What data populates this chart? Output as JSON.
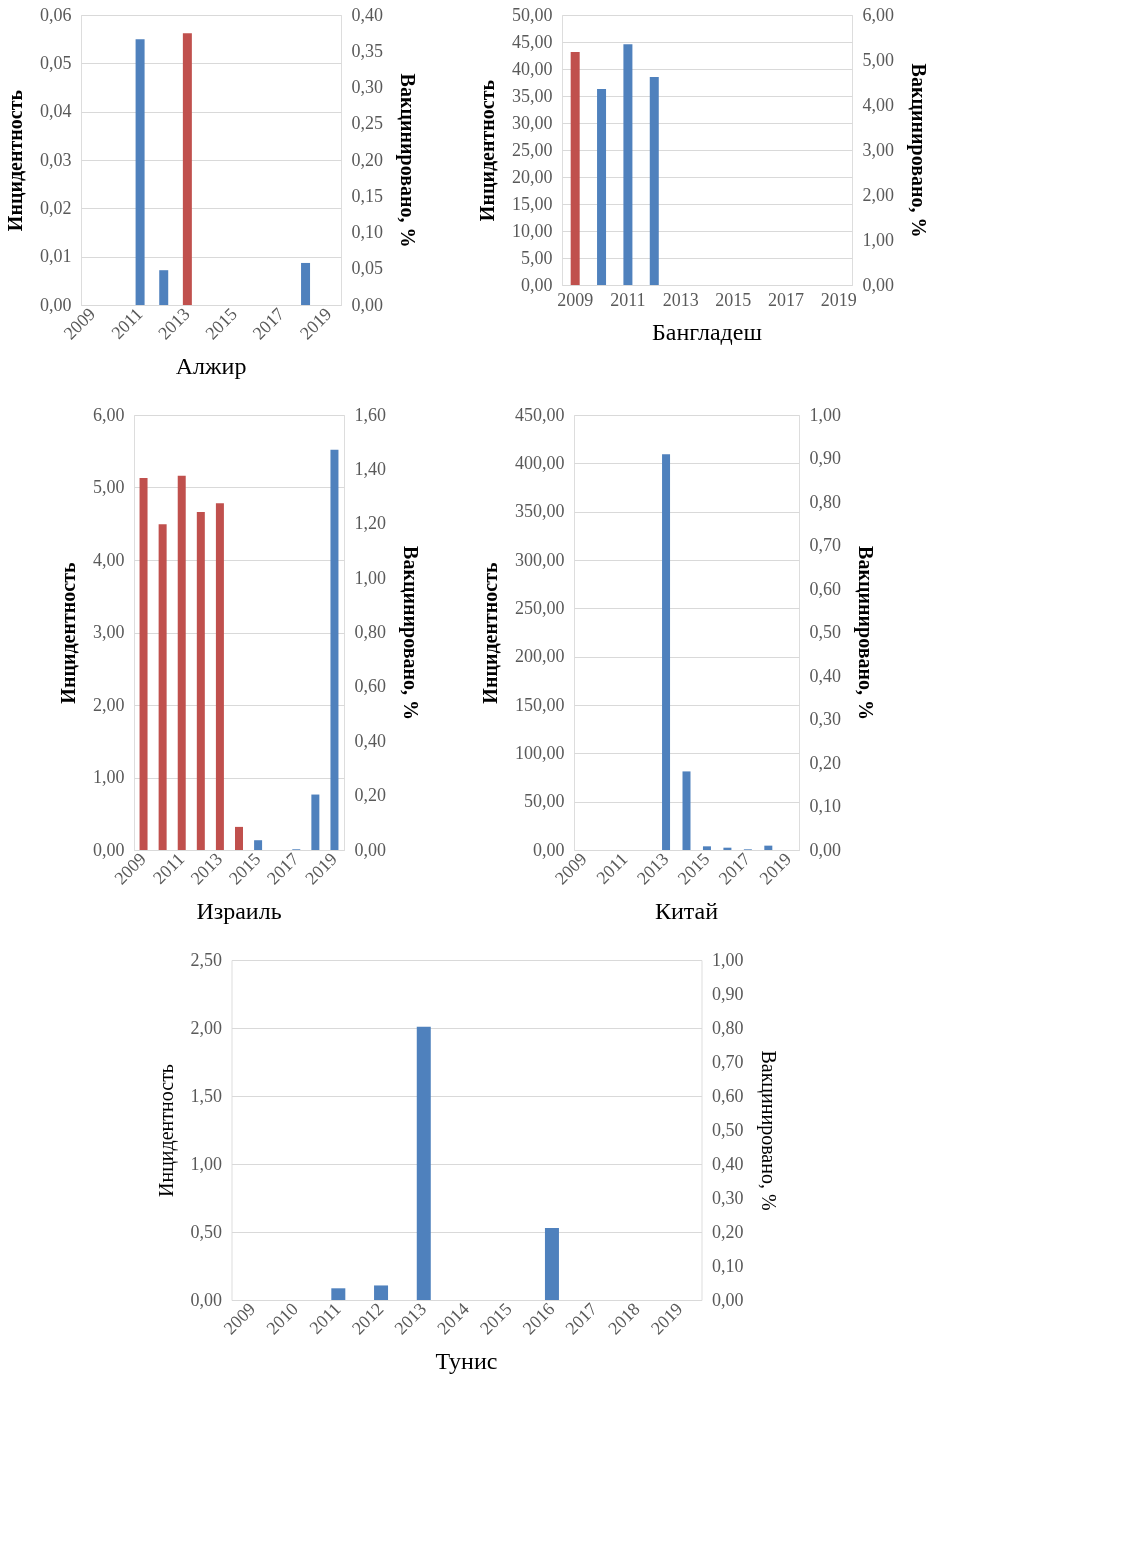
{
  "chart_data": [
    {
      "type": "bar",
      "title": "Алжир",
      "ylabel": "Инцидентность",
      "y2label": "Вакцинировано, %",
      "grid": "y",
      "categories": [
        "2009",
        null,
        "2011",
        null,
        "2013",
        null,
        "2015",
        null,
        "2017",
        null,
        "2019"
      ],
      "series": [
        {
          "color": "#4f81bd",
          "values": [
            null,
            null,
            0.055,
            0.0072,
            null,
            null,
            null,
            null,
            null,
            0.0087,
            null
          ]
        },
        {
          "color": "#c0504d",
          "axis": "y2",
          "values": [
            null,
            null,
            null,
            null,
            0.375,
            null,
            null,
            null,
            null,
            null,
            null
          ]
        }
      ],
      "ylim": [
        0,
        0.06
      ],
      "yticks": [
        {
          "value": 0,
          "label": "0,00"
        },
        {
          "value": 0.01,
          "label": "0,01"
        },
        {
          "value": 0.02,
          "label": "0,02"
        },
        {
          "value": 0.03,
          "label": "0,03"
        },
        {
          "value": 0.04,
          "label": "0,04"
        },
        {
          "value": 0.05,
          "label": "0,05"
        },
        {
          "value": 0.06,
          "label": "0,06"
        }
      ],
      "y2lim": [
        0,
        0.4
      ],
      "y2ticks": [
        {
          "value": 0,
          "label": "0,00"
        },
        {
          "value": 0.05,
          "label": "0,05"
        },
        {
          "value": 0.1,
          "label": "0,10"
        },
        {
          "value": 0.15,
          "label": "0,15"
        },
        {
          "value": 0.2,
          "label": "0,20"
        },
        {
          "value": 0.25,
          "label": "0,25"
        },
        {
          "value": 0.3,
          "label": "0,30"
        },
        {
          "value": 0.35,
          "label": "0,35"
        },
        {
          "value": 0.4,
          "label": "0,40"
        }
      ]
    },
    {
      "type": "bar",
      "title": "Бангладеш",
      "ylabel": "Инцидентность",
      "y2label": "Вакцинировано, %",
      "grid": "y",
      "categories": [
        "2009",
        null,
        "2011",
        null,
        "2013",
        null,
        "2015",
        null,
        "2017",
        null,
        "2019"
      ],
      "series": [
        {
          "color": "#4f81bd",
          "values": [
            null,
            36.3,
            44.6,
            38.5,
            null,
            null,
            null,
            null,
            null,
            null,
            null
          ]
        },
        {
          "color": "#c0504d",
          "axis": "y2",
          "values": [
            5.18,
            null,
            null,
            null,
            null,
            null,
            null,
            null,
            null,
            null,
            null
          ]
        }
      ],
      "ylim": [
        0,
        50
      ],
      "yticks": [
        {
          "value": 0,
          "label": "0,00"
        },
        {
          "value": 5,
          "label": "5,00"
        },
        {
          "value": 10,
          "label": "10,00"
        },
        {
          "value": 15,
          "label": "15,00"
        },
        {
          "value": 20,
          "label": "20,00"
        },
        {
          "value": 25,
          "label": "25,00"
        },
        {
          "value": 30,
          "label": "30,00"
        },
        {
          "value": 35,
          "label": "35,00"
        },
        {
          "value": 40,
          "label": "40,00"
        },
        {
          "value": 45,
          "label": "45,00"
        },
        {
          "value": 50,
          "label": "50,00"
        }
      ],
      "y2lim": [
        0,
        6
      ],
      "y2ticks": [
        {
          "value": 0,
          "label": "0,00"
        },
        {
          "value": 1,
          "label": "1,00"
        },
        {
          "value": 2,
          "label": "2,00"
        },
        {
          "value": 3,
          "label": "3,00"
        },
        {
          "value": 4,
          "label": "4,00"
        },
        {
          "value": 5,
          "label": "5,00"
        },
        {
          "value": 6,
          "label": "6,00"
        }
      ]
    },
    {
      "type": "bar",
      "title": "Израиль",
      "ylabel": "Инцидентность",
      "y2label": "Вакцинировано, %",
      "grid": "y",
      "categories": [
        "2009",
        null,
        "2011",
        null,
        "2013",
        null,
        "2015",
        null,
        "2017",
        null,
        "2019"
      ],
      "series": [
        {
          "color": "#4f81bd",
          "values": [
            null,
            null,
            null,
            null,
            null,
            null,
            0.135,
            null,
            0.01,
            0.765,
            5.52
          ]
        },
        {
          "color": "#c0504d",
          "axis": "y2",
          "values": [
            1.368,
            1.198,
            1.377,
            1.243,
            1.275,
            0.085,
            null,
            null,
            null,
            null,
            null
          ]
        }
      ],
      "ylim": [
        0,
        6
      ],
      "yticks": [
        {
          "value": 0,
          "label": "0,00"
        },
        {
          "value": 1,
          "label": "1,00"
        },
        {
          "value": 2,
          "label": "2,00"
        },
        {
          "value": 3,
          "label": "3,00"
        },
        {
          "value": 4,
          "label": "4,00"
        },
        {
          "value": 5,
          "label": "5,00"
        },
        {
          "value": 6,
          "label": "6,00"
        }
      ],
      "y2lim": [
        0,
        1.6
      ],
      "y2ticks": [
        {
          "value": 0,
          "label": "0,00"
        },
        {
          "value": 0.2,
          "label": "0,20"
        },
        {
          "value": 0.4,
          "label": "0,40"
        },
        {
          "value": 0.6,
          "label": "0,60"
        },
        {
          "value": 0.8,
          "label": "0,80"
        },
        {
          "value": 1,
          "label": "1,00"
        },
        {
          "value": 1.2,
          "label": "1,20"
        },
        {
          "value": 1.4,
          "label": "1,40"
        },
        {
          "value": 1.6,
          "label": "1,60"
        }
      ]
    },
    {
      "type": "bar",
      "title": "Китай",
      "ylabel": "Инцидентность",
      "y2label": "Вакцинировано, %",
      "grid": "y",
      "categories": [
        "2009",
        null,
        "2011",
        null,
        "2013",
        null,
        "2015",
        null,
        "2017",
        null,
        "2019"
      ],
      "series": [
        {
          "color": "#4f81bd",
          "values": [
            null,
            null,
            null,
            null,
            409.5,
            81.3,
            3.8,
            2.4,
            0.7,
            4.5,
            null
          ]
        },
        {
          "color": "#c0504d",
          "axis": "y2",
          "values": [
            null,
            null,
            null,
            null,
            null,
            null,
            null,
            null,
            null,
            null,
            null
          ]
        }
      ],
      "ylim": [
        0,
        450
      ],
      "yticks": [
        {
          "value": 0,
          "label": "0,00"
        },
        {
          "value": 50,
          "label": "50,00"
        },
        {
          "value": 100,
          "label": "100,00"
        },
        {
          "value": 150,
          "label": "150,00"
        },
        {
          "value": 200,
          "label": "200,00"
        },
        {
          "value": 250,
          "label": "250,00"
        },
        {
          "value": 300,
          "label": "300,00"
        },
        {
          "value": 350,
          "label": "350,00"
        },
        {
          "value": 400,
          "label": "400,00"
        },
        {
          "value": 450,
          "label": "450,00"
        }
      ],
      "y2lim": [
        0,
        1
      ],
      "y2ticks": [
        {
          "value": 0,
          "label": "0,00"
        },
        {
          "value": 0.1,
          "label": "0,10"
        },
        {
          "value": 0.2,
          "label": "0,20"
        },
        {
          "value": 0.3,
          "label": "0,30"
        },
        {
          "value": 0.4,
          "label": "0,40"
        },
        {
          "value": 0.5,
          "label": "0,50"
        },
        {
          "value": 0.6,
          "label": "0,60"
        },
        {
          "value": 0.7,
          "label": "0,70"
        },
        {
          "value": 0.8,
          "label": "0,80"
        },
        {
          "value": 0.9,
          "label": "0,90"
        },
        {
          "value": 1,
          "label": "1,00"
        }
      ]
    },
    {
      "type": "bar",
      "title": "Тунис",
      "ylabel": "Инцидентность",
      "y2label": "Вакцинировано, %",
      "grid": "y",
      "categories": [
        "2009",
        "2010",
        "2011",
        "2012",
        "2013",
        "2014",
        "2015",
        "2016",
        "2017",
        "2018",
        "2019"
      ],
      "series": [
        {
          "color": "#4f81bd",
          "values": [
            null,
            null,
            0.086,
            0.107,
            2.01,
            null,
            null,
            0.53,
            null,
            null,
            null
          ]
        },
        {
          "color": "#c0504d",
          "axis": "y2",
          "values": [
            null,
            null,
            null,
            null,
            null,
            null,
            null,
            null,
            null,
            null,
            null
          ]
        }
      ],
      "ylim": [
        0,
        2.5
      ],
      "yticks": [
        {
          "value": 0,
          "label": "0,00"
        },
        {
          "value": 0.5,
          "label": "0,50"
        },
        {
          "value": 1,
          "label": "1,00"
        },
        {
          "value": 1.5,
          "label": "1,50"
        },
        {
          "value": 2,
          "label": "2,00"
        },
        {
          "value": 2.5,
          "label": "2,50"
        }
      ],
      "y2lim": [
        0,
        1
      ],
      "y2ticks": [
        {
          "value": 0,
          "label": "0,00"
        },
        {
          "value": 0.1,
          "label": "0,10"
        },
        {
          "value": 0.2,
          "label": "0,20"
        },
        {
          "value": 0.3,
          "label": "0,30"
        },
        {
          "value": 0.4,
          "label": "0,40"
        },
        {
          "value": 0.5,
          "label": "0,50"
        },
        {
          "value": 0.6,
          "label": "0,60"
        },
        {
          "value": 0.7,
          "label": "0,70"
        },
        {
          "value": 0.8,
          "label": "0,80"
        },
        {
          "value": 0.9,
          "label": "0,90"
        },
        {
          "value": 1,
          "label": "1,00"
        }
      ]
    }
  ]
}
